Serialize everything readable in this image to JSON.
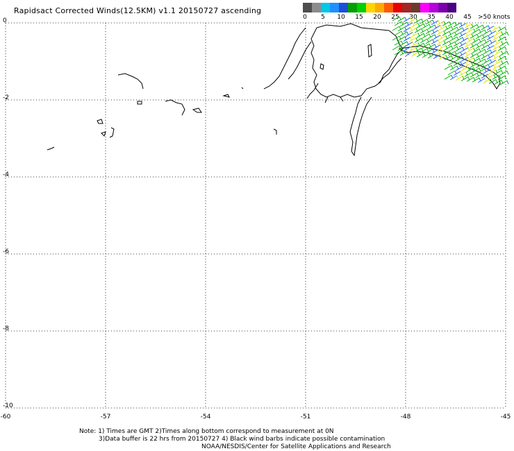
{
  "title": "Rapidsact Corrected Winds(12.5KM) v1.1 20150727 ascending",
  "legend": {
    "colors": [
      "#4d4d4d",
      "#8c8c8c",
      "#00c8e6",
      "#1e90ff",
      "#1d4fd6",
      "#00a000",
      "#00d000",
      "#ffd400",
      "#ffaa00",
      "#ff5a00",
      "#e60000",
      "#a02828",
      "#6b3a2a",
      "#ff00ff",
      "#b400dc",
      "#7a00a8",
      "#4b0082"
    ],
    "tick_labels": [
      "0",
      "5",
      "10",
      "15",
      "20",
      "25",
      "30",
      "35",
      "40",
      "45"
    ],
    "units_label": ">50 knots"
  },
  "axes": {
    "x_ticks": [
      "-60",
      "-57",
      "-54",
      "-51",
      "-48",
      "-45"
    ],
    "y_ticks": [
      "0",
      "-2",
      "-4",
      "-6",
      "-8",
      "-10"
    ],
    "x_range": [
      -60,
      -45
    ],
    "y_range": [
      -10,
      0
    ],
    "grid": "dotted"
  },
  "notes": {
    "line1": "Note: 1) Times are GMT 2)Times along bottom correspond to measurement at 0N",
    "line2": "3)Data buffer is 22 hrs from 20150727 4) Black wind barbs indicate possible contamination",
    "line3": "NOAA/NESDIS/Center for Satellite Applications and Research"
  },
  "colors": {
    "wind_green": "#00b400",
    "wind_blue": "#2060ff",
    "wind_yellow": "#e6e600",
    "coast": "#000000"
  }
}
